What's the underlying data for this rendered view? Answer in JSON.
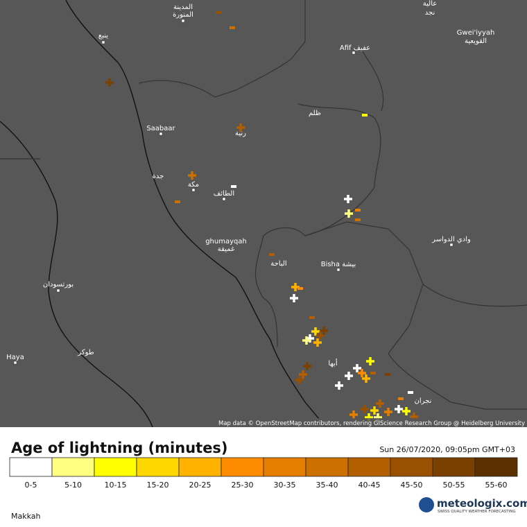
{
  "map": {
    "attribution": "Map data © OpenStreetMap contributors, rendering GIScience Research Group @ Heidelberg University",
    "places": [
      {
        "label": "المدينة"
      },
      {
        "label": "المنورة"
      },
      {
        "label": "ينبع"
      },
      {
        "label": "Afif عفيف"
      },
      {
        "label": "Gwei'iyyah"
      },
      {
        "label": "القويعية"
      },
      {
        "label": "عالية"
      },
      {
        "label": "نجد"
      },
      {
        "label": "Saabaar"
      },
      {
        "label": "رنية"
      },
      {
        "label": "ظلم"
      },
      {
        "label": "جدة"
      },
      {
        "label": "مكة"
      },
      {
        "label": "الطائف"
      },
      {
        "label": "ghumayqah"
      },
      {
        "label": "غميقة"
      },
      {
        "label": "الباحة"
      },
      {
        "label": "Bisha بيشة"
      },
      {
        "label": "وادي الدواسر"
      },
      {
        "label": "بورتسودان"
      },
      {
        "label": "طوكر"
      },
      {
        "label": "Haya"
      },
      {
        "label": "أبها"
      },
      {
        "label": "نجران"
      }
    ]
  },
  "legend": {
    "title": "Age of lightning (minutes)",
    "timestamp": "Sun 26/07/2020, 09:05pm GMT+03",
    "bins": [
      {
        "label": "0-5",
        "color": "#ffffff"
      },
      {
        "label": "5-10",
        "color": "#ffff80"
      },
      {
        "label": "10-15",
        "color": "#ffff00"
      },
      {
        "label": "15-20",
        "color": "#ffd700"
      },
      {
        "label": "20-25",
        "color": "#ffb300"
      },
      {
        "label": "25-30",
        "color": "#ff8c00"
      },
      {
        "label": "30-35",
        "color": "#e67e00"
      },
      {
        "label": "35-40",
        "color": "#cc7000"
      },
      {
        "label": "40-45",
        "color": "#b35f00"
      },
      {
        "label": "45-50",
        "color": "#995000"
      },
      {
        "label": "50-55",
        "color": "#7a4000"
      },
      {
        "label": "55-60",
        "color": "#5c3000"
      }
    ]
  },
  "footer": {
    "location": "Makkah",
    "brand": "meteologix.com",
    "tagline": "SWISS QUALITY WEATHER FORECASTING"
  }
}
